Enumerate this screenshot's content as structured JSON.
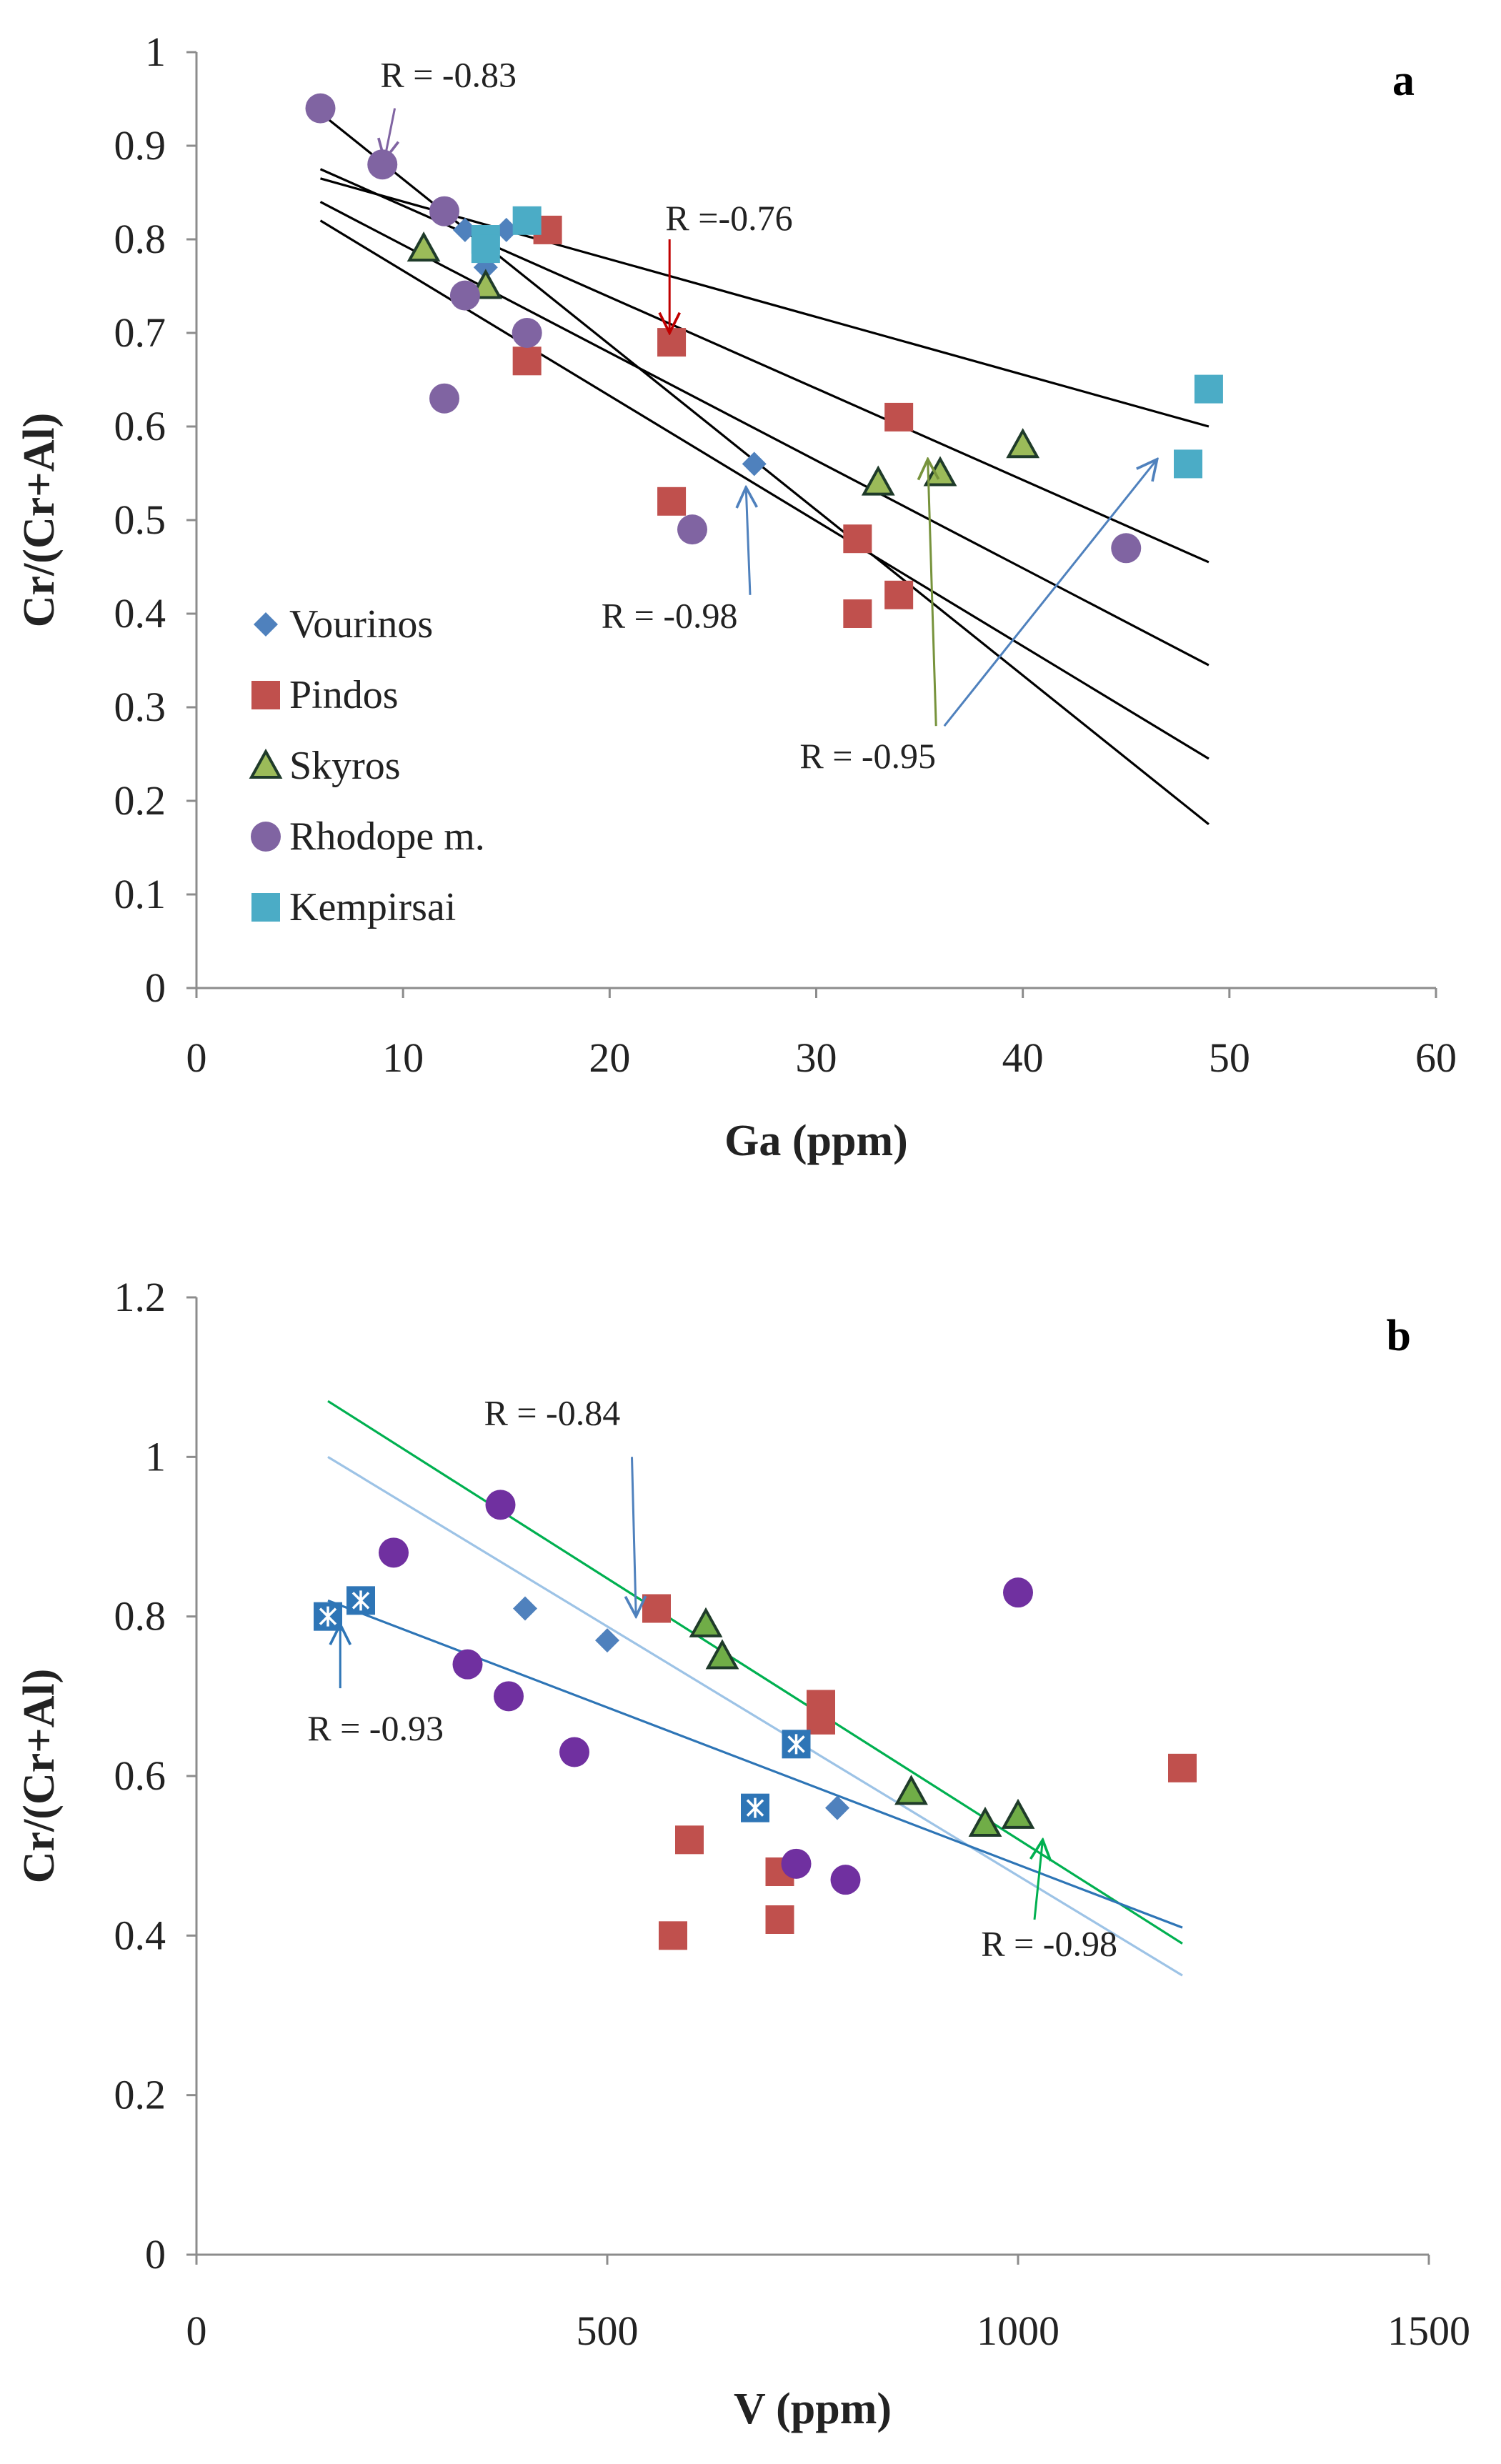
{
  "chart_data": [
    {
      "id": "a",
      "type": "scatter",
      "panel_label": "a",
      "xlabel": "Ga (ppm)",
      "ylabel": "Cr/(Cr+Al)",
      "xlim": [
        0,
        60
      ],
      "ylim": [
        0,
        1
      ],
      "xticks": [
        "0",
        "10",
        "20",
        "30",
        "40",
        "50",
        "60"
      ],
      "yticks": [
        "0",
        "0.1",
        "0.2",
        "0.3",
        "0.4",
        "0.5",
        "0.6",
        "0.7",
        "0.8",
        "0.9",
        "1"
      ],
      "legend": {
        "placement": "bottom-left"
      },
      "series": [
        {
          "name": "Vourinos",
          "marker": "diamond",
          "color": "#4f81bd",
          "points": [
            [
              13,
              0.81
            ],
            [
              14,
              0.77
            ],
            [
              15,
              0.81
            ],
            [
              27,
              0.56
            ]
          ]
        },
        {
          "name": "Pindos",
          "marker": "square",
          "color": "#c0504d",
          "points": [
            [
              16,
              0.67
            ],
            [
              17,
              0.81
            ],
            [
              23,
              0.69
            ],
            [
              23,
              0.52
            ],
            [
              32,
              0.48
            ],
            [
              32,
              0.4
            ],
            [
              34,
              0.61
            ],
            [
              34,
              0.42
            ]
          ]
        },
        {
          "name": "Skyros",
          "marker": "triangle",
          "color": "#9bbb59",
          "points": [
            [
              11,
              0.79
            ],
            [
              14,
              0.75
            ],
            [
              33,
              0.54
            ],
            [
              36,
              0.55
            ],
            [
              40,
              0.58
            ]
          ]
        },
        {
          "name": "Rhodope m.",
          "marker": "circle",
          "color": "#8064a2",
          "points": [
            [
              6,
              0.94
            ],
            [
              9,
              0.88
            ],
            [
              12,
              0.83
            ],
            [
              13,
              0.74
            ],
            [
              12,
              0.63
            ],
            [
              16,
              0.7
            ],
            [
              24,
              0.49
            ],
            [
              45,
              0.47
            ]
          ]
        },
        {
          "name": "Kempirsai",
          "marker": "square",
          "color": "#4bacc6",
          "points": [
            [
              14,
              0.8
            ],
            [
              14,
              0.79
            ],
            [
              16,
              0.82
            ],
            [
              48,
              0.56
            ],
            [
              49,
              0.64
            ]
          ]
        }
      ],
      "trendlines": [
        {
          "color": "#000000",
          "x": [
            6,
            49
          ],
          "y": [
            0.935,
            0.175
          ]
        },
        {
          "color": "#000000",
          "x": [
            6,
            49
          ],
          "y": [
            0.82,
            0.245
          ]
        },
        {
          "color": "#000000",
          "x": [
            6,
            49
          ],
          "y": [
            0.84,
            0.345
          ]
        },
        {
          "color": "#000000",
          "x": [
            6,
            49
          ],
          "y": [
            0.875,
            0.455
          ]
        },
        {
          "color": "#000000",
          "x": [
            6,
            49
          ],
          "y": [
            0.865,
            0.6
          ]
        }
      ],
      "annotations": [
        {
          "text": "R = -0.83",
          "color": "#8064a2",
          "tx": 8.9,
          "ty": 0.963,
          "ax0": 9.6,
          "ay0": 0.94,
          "ax1": 9.1,
          "ay1": 0.885
        },
        {
          "text": "R =-0.76",
          "color": "#c00000",
          "tx": 22.7,
          "ty": 0.81,
          "ax0": 22.9,
          "ay0": 0.8,
          "ax1": 22.9,
          "ay1": 0.7
        },
        {
          "text": "R = -0.98",
          "color": "#4f81bd",
          "tx": 19.6,
          "ty": 0.385,
          "ax0": 26.8,
          "ay0": 0.42,
          "ax1": 26.6,
          "ay1": 0.535
        },
        {
          "text": "R = -0.95",
          "color": "#77933c",
          "tx": 29.2,
          "ty": 0.235,
          "ax0": 35.8,
          "ay0": 0.28,
          "ax1": 35.4,
          "ay1": 0.565
        },
        {
          "text": "",
          "color": "#4f81bd",
          "tx": 0,
          "ty": 0,
          "ax0": 36.2,
          "ay0": 0.28,
          "ax1": 46.5,
          "ay1": 0.565
        }
      ]
    },
    {
      "id": "b",
      "type": "scatter",
      "panel_label": "b",
      "xlabel": "V (ppm)",
      "ylabel": "Cr/(Cr+Al)",
      "xlim": [
        0,
        1500
      ],
      "ylim": [
        0,
        1.2
      ],
      "xticks": [
        "0",
        "500",
        "1000",
        "1500"
      ],
      "yticks": [
        "0",
        "0.2",
        "0.4",
        "0.6",
        "0.8",
        "1",
        "1.2"
      ],
      "series": [
        {
          "name": "Vourinos",
          "marker": "diamond",
          "color": "#4f81bd",
          "points": [
            [
              400,
              0.81
            ],
            [
              500,
              0.77
            ],
            [
              780,
              0.56
            ]
          ]
        },
        {
          "name": "Pindos",
          "marker": "square",
          "color": "#c0504d",
          "points": [
            [
              560,
              0.81
            ],
            [
              580,
              0.4
            ],
            [
              600,
              0.52
            ],
            [
              710,
              0.48
            ],
            [
              710,
              0.42
            ],
            [
              760,
              0.67
            ],
            [
              760,
              0.69
            ],
            [
              1200,
              0.61
            ]
          ]
        },
        {
          "name": "Skyros",
          "marker": "triangle",
          "color": "#70ad47",
          "points": [
            [
              620,
              0.79
            ],
            [
              640,
              0.75
            ],
            [
              870,
              0.58
            ],
            [
              960,
              0.54
            ],
            [
              1000,
              0.55
            ]
          ]
        },
        {
          "name": "Rhodope m.",
          "marker": "circle",
          "color": "#7030a0",
          "points": [
            [
              240,
              0.88
            ],
            [
              370,
              0.94
            ],
            [
              330,
              0.74
            ],
            [
              380,
              0.7
            ],
            [
              460,
              0.63
            ],
            [
              730,
              0.49
            ],
            [
              790,
              0.47
            ],
            [
              1000,
              0.83
            ]
          ]
        },
        {
          "name": "Kempirsai",
          "marker": "squarestar",
          "color": "#2e75b6",
          "points": [
            [
              160,
              0.8
            ],
            [
              200,
              0.82
            ],
            [
              680,
              0.56
            ],
            [
              730,
              0.64
            ]
          ]
        }
      ],
      "trendlines": [
        {
          "color": "#00b050",
          "x": [
            160,
            1200
          ],
          "y": [
            1.07,
            0.39
          ]
        },
        {
          "color": "#9dc3e6",
          "x": [
            160,
            1200
          ],
          "y": [
            1.0,
            0.35
          ]
        },
        {
          "color": "#2e75b6",
          "x": [
            160,
            1200
          ],
          "y": [
            0.82,
            0.41
          ]
        }
      ],
      "annotations": [
        {
          "text": "R = -0.84",
          "color": "#4f81bd",
          "tx": 350,
          "ty": 1.04,
          "ax0": 530,
          "ay0": 1.0,
          "ax1": 535,
          "ay1": 0.8
        },
        {
          "text": "R = -0.93",
          "color": "#2e75b6",
          "tx": 135,
          "ty": 0.645,
          "ax0": 175,
          "ay0": 0.71,
          "ax1": 175,
          "ay1": 0.79
        },
        {
          "text": "R = -0.98",
          "color": "#00b050",
          "tx": 955,
          "ty": 0.375,
          "ax0": 1020,
          "ay0": 0.42,
          "ax1": 1030,
          "ay1": 0.52
        }
      ]
    }
  ]
}
